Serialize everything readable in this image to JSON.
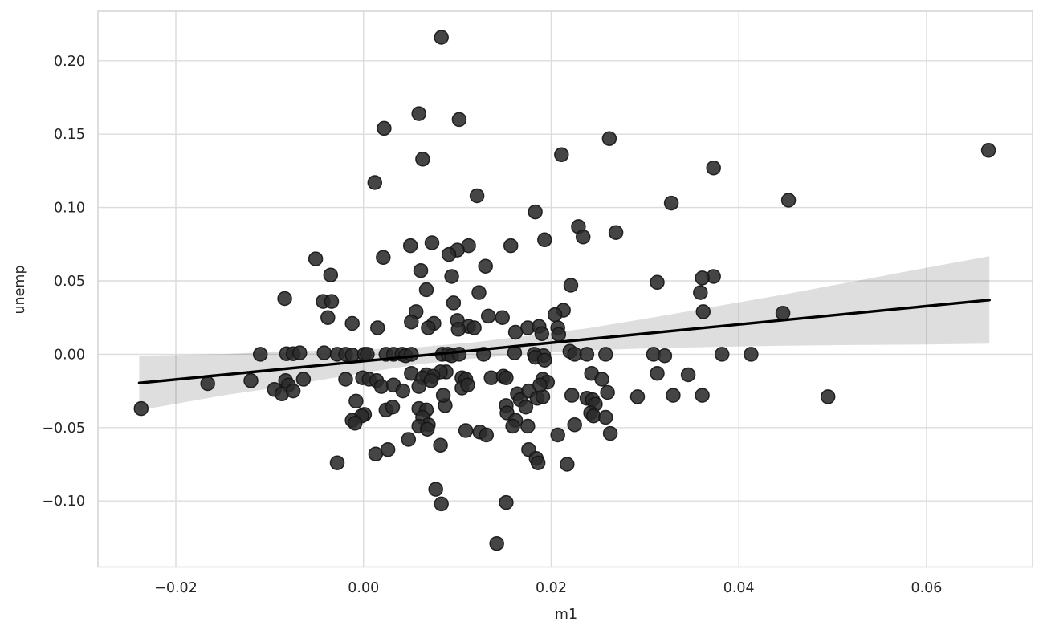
{
  "figure": {
    "xlabel": "m1",
    "ylabel": "unemp"
  },
  "chart_data": {
    "type": "scatter",
    "title": "",
    "xlabel": "m1",
    "ylabel": "unemp",
    "xlim": [
      -0.0283,
      0.0713
    ],
    "ylim": [
      -0.145,
      0.2338
    ],
    "x_ticks": [
      -0.02,
      0.0,
      0.02,
      0.04,
      0.06
    ],
    "y_ticks": [
      -0.1,
      -0.05,
      0.0,
      0.05,
      0.1,
      0.15,
      0.2
    ],
    "grid": true,
    "legend": "none",
    "marker": {
      "radius": 8.5,
      "fill": "#2b2b2b",
      "stroke": "#141414",
      "opacity": 0.88
    },
    "colors": {
      "line": "#000000",
      "band_fill": "#000000",
      "band_opacity": 0.13,
      "grid": "#dcdcdc",
      "spine": "#d4d4d4",
      "text": "#262626",
      "background": "#ffffff"
    },
    "regression_line": {
      "x1": -0.0239,
      "y1": -0.0196,
      "x2": 0.0667,
      "y2": 0.037
    },
    "ci_band": [
      [
        -0.0239,
        -0.0382,
        -0.001
      ],
      [
        -0.015,
        -0.0281,
        0.0001
      ],
      [
        -0.01,
        -0.0234,
        0.0016
      ],
      [
        -0.005,
        -0.018,
        0.0024
      ],
      [
        0.0,
        -0.0127,
        0.0033
      ],
      [
        0.006,
        -0.0067,
        0.0049
      ],
      [
        0.012,
        -0.0027,
        0.0083
      ],
      [
        0.018,
        0.0003,
        0.0129
      ],
      [
        0.024,
        0.0028,
        0.0178
      ],
      [
        0.031,
        0.0041,
        0.0253
      ],
      [
        0.038,
        0.0051,
        0.0331
      ],
      [
        0.045,
        0.0058,
        0.041
      ],
      [
        0.052,
        0.0063,
        0.0493
      ],
      [
        0.059,
        0.0066,
        0.0578
      ],
      [
        0.0667,
        0.0072,
        0.0668
      ]
    ],
    "points": [
      [
        0.0083,
        0.216
      ],
      [
        0.0022,
        0.154
      ],
      [
        0.0059,
        0.164
      ],
      [
        0.0102,
        0.16
      ],
      [
        0.0262,
        0.147
      ],
      [
        0.0211,
        0.136
      ],
      [
        0.0063,
        0.133
      ],
      [
        0.0666,
        0.139
      ],
      [
        0.0373,
        0.127
      ],
      [
        0.0012,
        0.117
      ],
      [
        0.0121,
        0.108
      ],
      [
        0.0453,
        0.105
      ],
      [
        0.0328,
        0.103
      ],
      [
        0.0183,
        0.097
      ],
      [
        0.0229,
        0.087
      ],
      [
        0.0269,
        0.083
      ],
      [
        0.0234,
        0.08
      ],
      [
        0.0193,
        0.078
      ],
      [
        0.0073,
        0.076
      ],
      [
        0.005,
        0.074
      ],
      [
        0.0157,
        0.074
      ],
      [
        0.0112,
        0.074
      ],
      [
        0.01,
        0.071
      ],
      [
        0.0091,
        0.068
      ],
      [
        0.0021,
        0.066
      ],
      [
        -0.0051,
        0.065
      ],
      [
        0.013,
        0.06
      ],
      [
        0.0061,
        0.057
      ],
      [
        -0.0035,
        0.054
      ],
      [
        0.0094,
        0.053
      ],
      [
        0.0373,
        0.053
      ],
      [
        0.0361,
        0.052
      ],
      [
        0.0313,
        0.049
      ],
      [
        0.0221,
        0.047
      ],
      [
        0.0067,
        0.044
      ],
      [
        0.0123,
        0.042
      ],
      [
        0.0359,
        0.042
      ],
      [
        -0.0084,
        0.038
      ],
      [
        -0.0043,
        0.036
      ],
      [
        -0.0034,
        0.036
      ],
      [
        0.0096,
        0.035
      ],
      [
        0.0213,
        0.03
      ],
      [
        0.0056,
        0.029
      ],
      [
        0.0362,
        0.029
      ],
      [
        0.0447,
        0.028
      ],
      [
        0.0204,
        0.027
      ],
      [
        0.0133,
        0.026
      ],
      [
        -0.0038,
        0.025
      ],
      [
        0.0148,
        0.025
      ],
      [
        0.01,
        0.023
      ],
      [
        0.0051,
        0.022
      ],
      [
        -0.0012,
        0.021
      ],
      [
        0.0075,
        0.021
      ],
      [
        0.0112,
        0.019
      ],
      [
        0.0015,
        0.018
      ],
      [
        0.0069,
        0.018
      ],
      [
        0.0175,
        0.018
      ],
      [
        0.0118,
        0.018
      ],
      [
        0.0101,
        0.017
      ],
      [
        0.0187,
        0.019
      ],
      [
        0.0162,
        0.015
      ],
      [
        0.019,
        0.014
      ],
      [
        0.0207,
        0.018
      ],
      [
        0.0208,
        0.0135
      ],
      [
        -0.011,
        0.0
      ],
      [
        -0.0082,
        0.0004
      ],
      [
        -0.0075,
        0.0004
      ],
      [
        -0.0068,
        0.001
      ],
      [
        -0.0042,
        0.001
      ],
      [
        -0.0028,
        0.0
      ],
      [
        -0.0019,
        0.0
      ],
      [
        -0.0012,
        -0.0005
      ],
      [
        0.0001,
        0.0
      ],
      [
        0.0004,
        0.0
      ],
      [
        0.0024,
        0.0
      ],
      [
        0.0032,
        0.0
      ],
      [
        0.0041,
        0.0
      ],
      [
        0.0045,
        -0.001
      ],
      [
        0.0051,
        0.0
      ],
      [
        0.0084,
        0.0
      ],
      [
        0.009,
        0.0
      ],
      [
        0.0094,
        -0.001
      ],
      [
        0.0102,
        0.0
      ],
      [
        0.0128,
        0.0
      ],
      [
        0.0161,
        0.001
      ],
      [
        0.0182,
        0.0
      ],
      [
        0.0192,
        -0.001
      ],
      [
        0.0183,
        -0.002
      ],
      [
        0.0193,
        -0.004
      ],
      [
        0.022,
        0.002
      ],
      [
        0.0225,
        0.0
      ],
      [
        0.0238,
        0.0
      ],
      [
        0.0258,
        0.0
      ],
      [
        0.0309,
        0.0
      ],
      [
        0.0321,
        -0.001
      ],
      [
        0.0382,
        0.0
      ],
      [
        0.0413,
        0.0
      ],
      [
        0.0088,
        -0.012
      ],
      [
        0.0082,
        -0.012
      ],
      [
        0.0051,
        -0.013
      ],
      [
        0.0067,
        -0.014
      ],
      [
        0.0074,
        -0.015
      ],
      [
        -0.0019,
        -0.017
      ],
      [
        -0.0001,
        -0.016
      ],
      [
        0.0006,
        -0.017
      ],
      [
        0.0014,
        -0.018
      ],
      [
        0.0019,
        -0.022
      ],
      [
        0.0032,
        -0.021
      ],
      [
        0.0042,
        -0.025
      ],
      [
        0.0063,
        -0.016
      ],
      [
        0.0072,
        -0.018
      ],
      [
        0.0105,
        -0.016
      ],
      [
        0.0109,
        -0.017
      ],
      [
        0.0136,
        -0.016
      ],
      [
        0.0149,
        -0.015
      ],
      [
        0.0152,
        -0.016
      ],
      [
        0.0191,
        -0.017
      ],
      [
        0.0196,
        -0.019
      ],
      [
        0.0243,
        -0.013
      ],
      [
        0.0254,
        -0.017
      ],
      [
        0.0313,
        -0.013
      ],
      [
        0.0346,
        -0.014
      ],
      [
        -0.0166,
        -0.02
      ],
      [
        -0.012,
        -0.018
      ],
      [
        -0.0083,
        -0.018
      ],
      [
        -0.008,
        -0.021
      ],
      [
        -0.0064,
        -0.017
      ],
      [
        -0.0095,
        -0.024
      ],
      [
        -0.0087,
        -0.027
      ],
      [
        -0.0075,
        -0.025
      ],
      [
        0.0059,
        -0.022
      ],
      [
        0.0105,
        -0.023
      ],
      [
        0.0111,
        -0.021
      ],
      [
        0.0164,
        -0.027
      ],
      [
        0.0167,
        -0.031
      ],
      [
        0.0176,
        -0.025
      ],
      [
        0.0185,
        -0.03
      ],
      [
        0.0191,
        -0.029
      ],
      [
        0.0188,
        -0.021
      ],
      [
        0.0222,
        -0.028
      ],
      [
        0.0238,
        -0.03
      ],
      [
        0.0244,
        -0.031
      ],
      [
        0.0247,
        -0.034
      ],
      [
        0.0242,
        -0.04
      ],
      [
        0.0245,
        -0.042
      ],
      [
        0.026,
        -0.026
      ],
      [
        0.0258,
        -0.043
      ],
      [
        0.0292,
        -0.029
      ],
      [
        0.033,
        -0.028
      ],
      [
        0.0361,
        -0.028
      ],
      [
        0.0495,
        -0.029
      ],
      [
        -0.0237,
        -0.037
      ],
      [
        -0.0008,
        -0.032
      ],
      [
        0.0001,
        -0.041
      ],
      [
        -0.0002,
        -0.042
      ],
      [
        -0.0012,
        -0.045
      ],
      [
        -0.0009,
        -0.047
      ],
      [
        0.0024,
        -0.038
      ],
      [
        0.0031,
        -0.036
      ],
      [
        0.0059,
        -0.037
      ],
      [
        0.0067,
        -0.038
      ],
      [
        0.0063,
        -0.043
      ],
      [
        0.0069,
        -0.048
      ],
      [
        0.0059,
        -0.049
      ],
      [
        0.0068,
        -0.051
      ],
      [
        0.0087,
        -0.035
      ],
      [
        0.0085,
        -0.028
      ],
      [
        0.0152,
        -0.035
      ],
      [
        0.0153,
        -0.04
      ],
      [
        0.0162,
        -0.045
      ],
      [
        0.0159,
        -0.049
      ],
      [
        0.0173,
        -0.036
      ],
      [
        0.0175,
        -0.049
      ],
      [
        0.0109,
        -0.052
      ],
      [
        0.0124,
        -0.053
      ],
      [
        0.0131,
        -0.055
      ],
      [
        0.0207,
        -0.055
      ],
      [
        0.0225,
        -0.048
      ],
      [
        0.0263,
        -0.054
      ],
      [
        0.0048,
        -0.058
      ],
      [
        0.0082,
        -0.062
      ],
      [
        0.0176,
        -0.065
      ],
      [
        0.0184,
        -0.071
      ],
      [
        0.0186,
        -0.074
      ],
      [
        0.0217,
        -0.075
      ],
      [
        0.0013,
        -0.068
      ],
      [
        0.0026,
        -0.065
      ],
      [
        -0.0028,
        -0.074
      ],
      [
        0.0077,
        -0.092
      ],
      [
        0.0083,
        -0.102
      ],
      [
        0.0152,
        -0.101
      ],
      [
        0.0142,
        -0.129
      ]
    ]
  }
}
